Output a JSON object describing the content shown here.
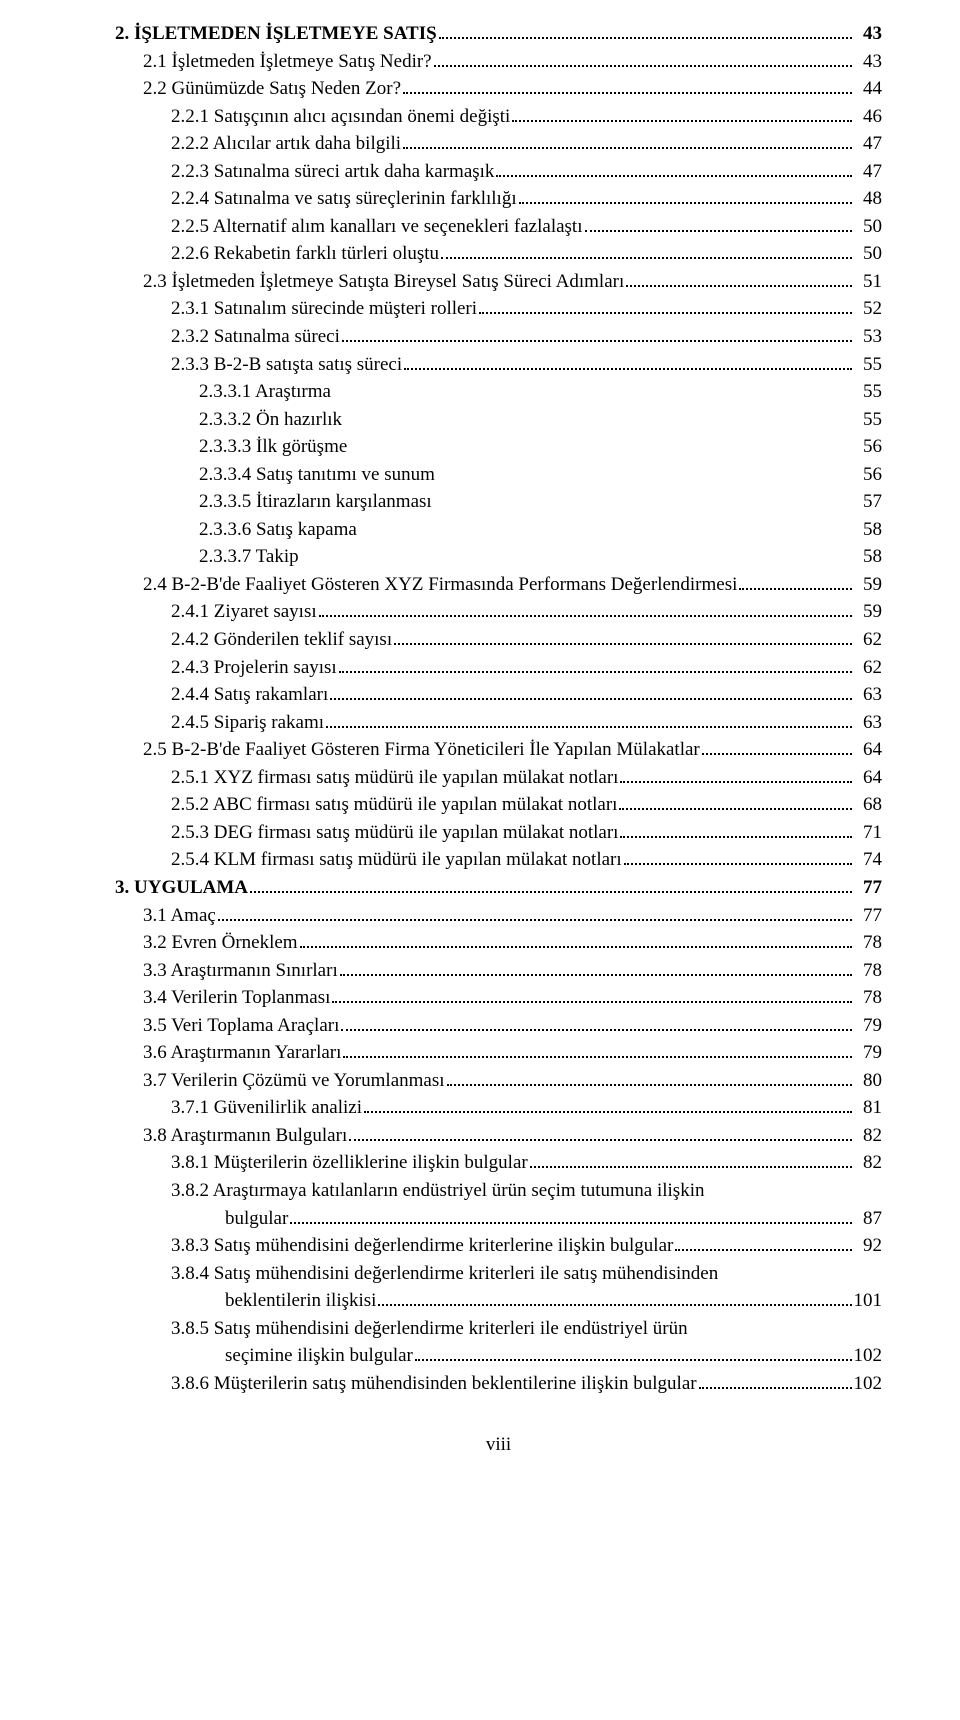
{
  "page_label": "viii",
  "entries": [
    {
      "level": 0,
      "title": "2. İŞLETMEDEN İŞLETMEYE SATIŞ",
      "page": "43",
      "dots": true
    },
    {
      "level": 1,
      "title": "2.1 İşletmeden İşletmeye Satış Nedir?",
      "page": "43",
      "dots": true
    },
    {
      "level": 1,
      "title": "2.2 Günümüzde Satış Neden Zor?",
      "page": "44",
      "dots": true
    },
    {
      "level": 2,
      "title": "2.2.1 Satışçının alıcı açısından önemi değişti",
      "page": "46",
      "dots": true
    },
    {
      "level": 2,
      "title": "2.2.2 Alıcılar artık daha bilgili",
      "page": "47",
      "dots": true
    },
    {
      "level": 2,
      "title": "2.2.3 Satınalma süreci artık daha karmaşık",
      "page": "47",
      "dots": true
    },
    {
      "level": 2,
      "title": "2.2.4 Satınalma ve satış süreçlerinin farklılığı",
      "page": "48",
      "dots": true
    },
    {
      "level": 2,
      "title": "2.2.5 Alternatif alım kanalları ve seçenekleri fazlalaştı",
      "page": "50",
      "dots": true
    },
    {
      "level": 2,
      "title": "2.2.6 Rekabetin farklı türleri oluştu",
      "page": "50",
      "dots": true
    },
    {
      "level": 1,
      "title": "2.3 İşletmeden İşletmeye Satışta Bireysel Satış Süreci Adımları",
      "page": "51",
      "dots": true
    },
    {
      "level": 2,
      "title": "2.3.1 Satınalım sürecinde müşteri rolleri",
      "page": "52",
      "dots": true
    },
    {
      "level": 2,
      "title": "2.3.2 Satınalma süreci",
      "page": "53",
      "dots": true
    },
    {
      "level": 2,
      "title": "2.3.3 B-2-B satışta satış süreci",
      "page": "55",
      "dots": true
    },
    {
      "level": 3,
      "title": "2.3.3.1 Araştırma",
      "page": "55",
      "dots": false
    },
    {
      "level": 3,
      "title": "2.3.3.2 Ön hazırlık",
      "page": "55",
      "dots": false
    },
    {
      "level": 3,
      "title": "2.3.3.3 İlk görüşme",
      "page": "56",
      "dots": false
    },
    {
      "level": 3,
      "title": "2.3.3.4 Satış tanıtımı ve sunum",
      "page": "56",
      "dots": false
    },
    {
      "level": 3,
      "title": "2.3.3.5 İtirazların karşılanması",
      "page": "57",
      "dots": false
    },
    {
      "level": 3,
      "title": "2.3.3.6 Satış kapama",
      "page": "58",
      "dots": false
    },
    {
      "level": 3,
      "title": "2.3.3.7 Takip",
      "page": "58",
      "dots": false
    },
    {
      "level": 1,
      "title": "2.4 B-2-B'de Faaliyet Gösteren XYZ Firmasında Performans Değerlendirmesi",
      "page": "59",
      "dots": true
    },
    {
      "level": 2,
      "title": "2.4.1 Ziyaret sayısı",
      "page": "59",
      "dots": true
    },
    {
      "level": 2,
      "title": "2.4.2 Gönderilen teklif sayısı",
      "page": "62",
      "dots": true
    },
    {
      "level": 2,
      "title": "2.4.3 Projelerin sayısı",
      "page": "62",
      "dots": true
    },
    {
      "level": 2,
      "title": "2.4.4 Satış rakamları",
      "page": "63",
      "dots": true
    },
    {
      "level": 2,
      "title": "2.4.5 Sipariş rakamı",
      "page": "63",
      "dots": true
    },
    {
      "level": 1,
      "title": "2.5 B-2-B'de Faaliyet Gösteren Firma Yöneticileri İle Yapılan Mülakatlar",
      "page": "64",
      "dots": true
    },
    {
      "level": 2,
      "title": "2.5.1 XYZ firması satış müdürü ile yapılan mülakat notları",
      "page": "64",
      "dots": true
    },
    {
      "level": 2,
      "title": "2.5.2 ABC firması satış müdürü ile yapılan mülakat notları",
      "page": "68",
      "dots": true
    },
    {
      "level": 2,
      "title": "2.5.3 DEG firması satış müdürü ile yapılan mülakat notları",
      "page": "71",
      "dots": true
    },
    {
      "level": 2,
      "title": "2.5.4 KLM firması satış müdürü ile yapılan mülakat notları",
      "page": "74",
      "dots": true
    },
    {
      "level": 0,
      "title": "3. UYGULAMA",
      "page": "77",
      "dots": true
    },
    {
      "level": 1,
      "title": "3.1 Amaç",
      "page": "77",
      "dots": true
    },
    {
      "level": 1,
      "title": "3.2 Evren Örneklem",
      "page": "78",
      "dots": true
    },
    {
      "level": 1,
      "title": "3.3 Araştırmanın Sınırları",
      "page": "78",
      "dots": true
    },
    {
      "level": 1,
      "title": "3.4 Verilerin Toplanması",
      "page": "78",
      "dots": true
    },
    {
      "level": 1,
      "title": "3.5 Veri Toplama Araçları",
      "page": "79",
      "dots": true
    },
    {
      "level": 1,
      "title": "3.6 Araştırmanın Yararları",
      "page": "79",
      "dots": true
    },
    {
      "level": 1,
      "title": "3.7 Verilerin Çözümü ve Yorumlanması",
      "page": "80",
      "dots": true
    },
    {
      "level": 2,
      "title": "3.7.1 Güvenilirlik analizi",
      "page": "81",
      "dots": true
    },
    {
      "level": 1,
      "title": "3.8 Araştırmanın Bulguları",
      "page": "82",
      "dots": true
    },
    {
      "level": 2,
      "title": "3.8.1 Müşterilerin özelliklerine ilişkin bulgular",
      "page": "82",
      "dots": true
    },
    {
      "level": 2,
      "title": "3.8.2 Araştırmaya katılanların endüstriyel ürün seçim tutumuna ilişkin",
      "page": "",
      "dots": false
    },
    {
      "level": "2c",
      "title": "bulgular",
      "page": "87",
      "dots": true
    },
    {
      "level": 2,
      "title": "3.8.3 Satış mühendisini değerlendirme kriterlerine ilişkin bulgular",
      "page": "92",
      "dots": true
    },
    {
      "level": 2,
      "title": "3.8.4 Satış mühendisini değerlendirme kriterleri ile satış mühendisinden",
      "page": "",
      "dots": false
    },
    {
      "level": "2c",
      "title": "beklentilerin ilişkisi",
      "page": "101",
      "dots": true
    },
    {
      "level": 2,
      "title": "3.8.5 Satış mühendisini değerlendirme kriterleri ile endüstriyel ürün",
      "page": "",
      "dots": false
    },
    {
      "level": "2c",
      "title": "seçimine ilişkin bulgular",
      "page": "102",
      "dots": true
    },
    {
      "level": 2,
      "title": "3.8.6 Müşterilerin satış mühendisinden beklentilerine ilişkin bulgular",
      "page": "102",
      "dots": true
    }
  ]
}
